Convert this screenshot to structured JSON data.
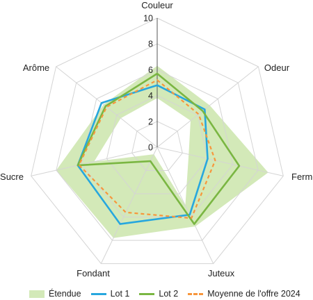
{
  "chart_data": {
    "type": "radar",
    "axes": [
      "Couleur",
      "Odeur",
      "Ferme",
      "Juteux",
      "Fondant",
      "Sucre",
      "Arôme"
    ],
    "range": [
      0,
      10
    ],
    "ticks": [
      "0",
      "2",
      "4",
      "6",
      "8",
      "10"
    ],
    "grid": true,
    "legend_position": "bottom",
    "band": {
      "name": "Étendue",
      "color": "#d3e9b8",
      "min": [
        3.8,
        3.3,
        2.5,
        5.0,
        0.6,
        5.0,
        3.6
      ],
      "max": [
        6.3,
        5.2,
        8.8,
        6.8,
        7.8,
        8.0,
        5.3
      ]
    },
    "series": [
      {
        "name": "Lot 1",
        "color": "#27a7de",
        "style": "solid",
        "values": [
          4.8,
          4.7,
          4.0,
          5.8,
          6.6,
          6.3,
          5.5
        ]
      },
      {
        "name": "Lot 2",
        "color": "#7ab642",
        "style": "solid",
        "values": [
          5.7,
          4.5,
          6.5,
          6.6,
          1.2,
          6.3,
          5.1
        ]
      },
      {
        "name": "Moyenne de l'offre 2024",
        "color": "#f7963c",
        "style": "dashed",
        "values": [
          5.2,
          4.1,
          4.6,
          6.1,
          5.6,
          6.2,
          5.0
        ]
      }
    ]
  },
  "legend": {
    "band_label": "Étendue",
    "lot1_label": "Lot 1",
    "lot2_label": "Lot 2",
    "avg_label": "Moyenne de l'offre 2024"
  }
}
